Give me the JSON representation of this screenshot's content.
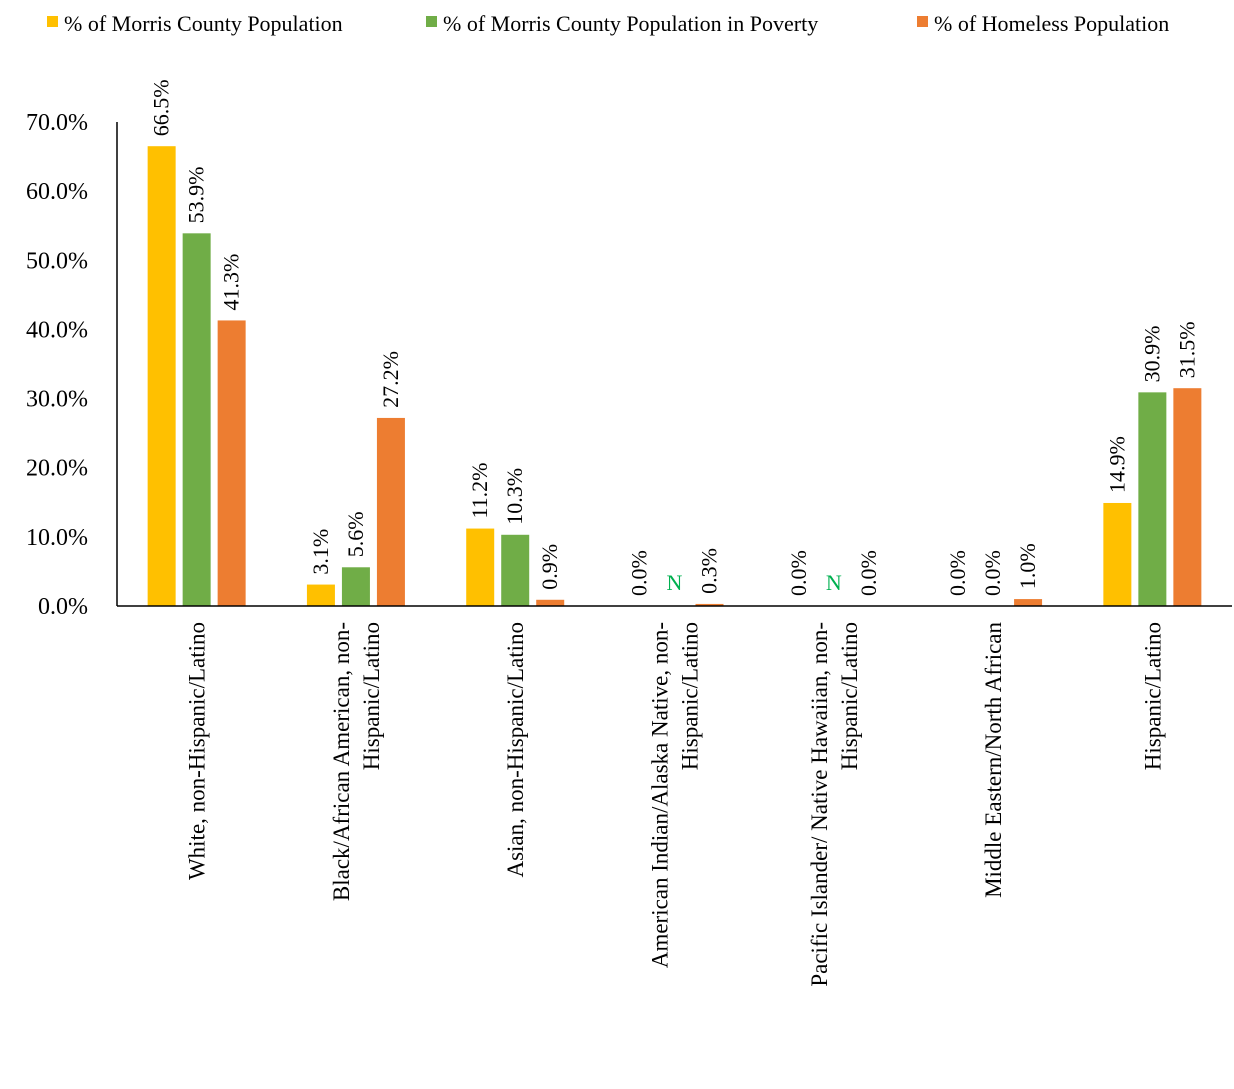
{
  "chart_data": {
    "type": "bar",
    "categories": [
      [
        "White, non-Hispanic/Latino"
      ],
      [
        "Black/African American, non-",
        "Hispanic/Latino"
      ],
      [
        "Asian, non-Hispanic/Latino"
      ],
      [
        "American Indian/Alaska Native, non-",
        "Hispanic/Latino"
      ],
      [
        "Pacific Islander/ Native Hawaiian, non-",
        "Hispanic/Latino"
      ],
      [
        "Middle Eastern/North African"
      ],
      [
        "Hispanic/Latino"
      ]
    ],
    "series": [
      {
        "name": "% of Morris County Population",
        "color": "#FFC000",
        "values": [
          66.5,
          3.1,
          11.2,
          0.0,
          0.0,
          0.0,
          14.9
        ],
        "labels": [
          "66.5%",
          "3.1%",
          "11.2%",
          "0.0%",
          "0.0%",
          "0.0%",
          "14.9%"
        ]
      },
      {
        "name": "% of Morris County Population in Poverty",
        "color": "#70AD47",
        "values": [
          53.9,
          5.6,
          10.3,
          null,
          null,
          0.0,
          30.9
        ],
        "labels": [
          "53.9%",
          "5.6%",
          "10.3%",
          "N",
          "N",
          "0.0%",
          "30.9%"
        ]
      },
      {
        "name": "% of Homeless Population",
        "color": "#ED7D31",
        "values": [
          41.3,
          27.2,
          0.9,
          0.3,
          0.0,
          1.0,
          31.5
        ],
        "labels": [
          "41.3%",
          "27.2%",
          "0.9%",
          "0.3%",
          "0.0%",
          "1.0%",
          "31.5%"
        ]
      }
    ],
    "y_ticks": [
      "0.0%",
      "10.0%",
      "20.0%",
      "30.0%",
      "40.0%",
      "50.0%",
      "60.0%",
      "70.0%"
    ],
    "ylim": [
      0,
      70
    ],
    "legend_position": "top",
    "grid": false,
    "na_label_color": "#00B050"
  }
}
